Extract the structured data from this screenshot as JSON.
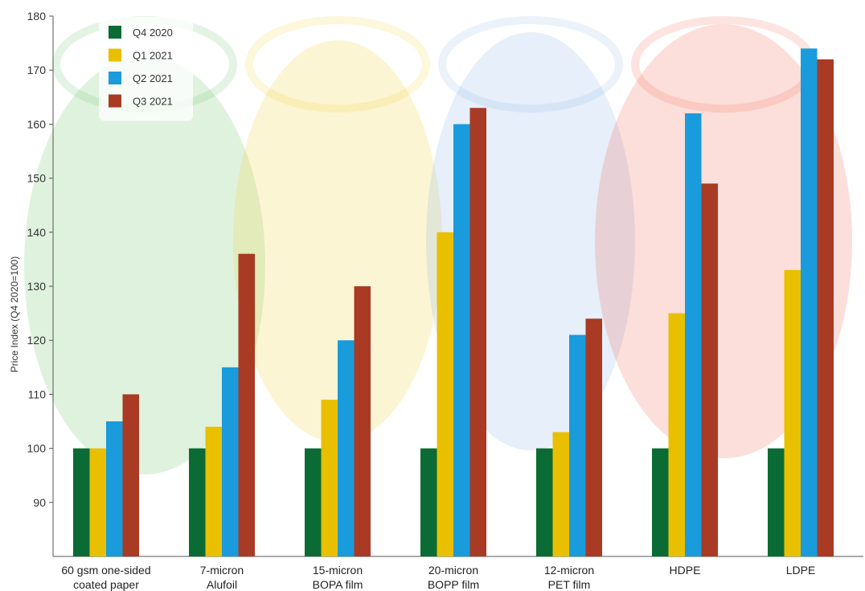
{
  "chart_data": {
    "type": "bar",
    "categories": [
      [
        "60 gsm one-sided",
        "coated paper"
      ],
      [
        "7-micron",
        "Alufoil"
      ],
      [
        "15-micron",
        "BOPA film"
      ],
      [
        "20-micron",
        "BOPP film"
      ],
      [
        "12-micron",
        "PET film"
      ],
      [
        "HDPE"
      ],
      [
        "LDPE"
      ]
    ],
    "series": [
      {
        "name": "Q4 2020",
        "color": "#0b6b35",
        "values": [
          100,
          100,
          100,
          100,
          100,
          100,
          100
        ]
      },
      {
        "name": "Q1 2021",
        "color": "#e8c000",
        "values": [
          100,
          104,
          109,
          140,
          103,
          125,
          133
        ]
      },
      {
        "name": "Q2 2021",
        "color": "#1a9bdc",
        "values": [
          105,
          115,
          120,
          160,
          121,
          162,
          174
        ]
      },
      {
        "name": "Q3 2021",
        "color": "#a93a24",
        "values": [
          110,
          136,
          130,
          163,
          124,
          149,
          172
        ]
      }
    ],
    "ylabel": "Price Index (Q4 2020=100)",
    "xlabel": "",
    "ylim": [
      80,
      180
    ],
    "yticks": [
      90,
      100,
      110,
      120,
      130,
      140,
      150,
      160,
      170,
      180
    ],
    "legend": "top-left",
    "grid": false,
    "background": "faded photo of colored plastic pellets (green, yellow, blue, red)"
  }
}
